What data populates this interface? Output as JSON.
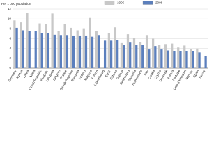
{
  "chart_data": {
    "type": "bar",
    "y_label": "Per 1 000 population",
    "categories": [
      "Germany",
      "Austria",
      "Latvia",
      "Malta",
      "Czech Republic",
      "Hungary",
      "Lithuania",
      "Belgium",
      "France",
      "Slovak Republic",
      "Romania",
      "Finland",
      "Bulgaria",
      "Poland",
      "Luxembourg",
      "EU27",
      "Estonia",
      "Greece",
      "Switzerland",
      "Slovenia",
      "Netherlands",
      "Italy",
      "Croatia",
      "Cyprus",
      "Denmark",
      "Ireland",
      "Portugal",
      "United Kingdom",
      "Norway",
      "Spain",
      "Turkey"
    ],
    "series": [
      {
        "name": "1995",
        "color": "#c8c8c8",
        "values": [
          9.7,
          9.3,
          11.2,
          null,
          9.1,
          9.0,
          11.1,
          7.6,
          8.9,
          8.2,
          7.7,
          8.1,
          10.2,
          7.6,
          null,
          7.2,
          8.3,
          5.1,
          6.9,
          6.2,
          5.3,
          6.6,
          6.0,
          4.8,
          4.9,
          5.0,
          4.2,
          4.6,
          3.9,
          4.0,
          null
        ],
        "values_note_free": null
      },
      {
        "name": "2008",
        "color": "#5b7fbd",
        "values": [
          8.2,
          7.7,
          7.5,
          7.5,
          7.2,
          7.1,
          6.8,
          6.6,
          6.6,
          6.5,
          6.5,
          6.5,
          6.4,
          6.6,
          5.6,
          5.6,
          5.7,
          4.8,
          5.2,
          4.8,
          4.7,
          3.8,
          4.5,
          3.8,
          3.6,
          3.5,
          3.4,
          3.4,
          3.4,
          3.2,
          2.4
        ]
      }
    ],
    "ylim": [
      0,
      12
    ],
    "yticks": [
      0,
      2,
      4,
      6,
      8,
      10,
      12
    ],
    "grid": true
  }
}
